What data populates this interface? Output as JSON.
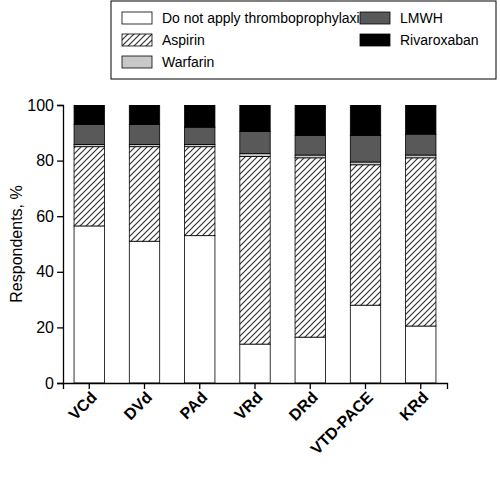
{
  "chart_data": {
    "type": "bar",
    "stacked": true,
    "legend": "top",
    "ylabel": "Respondents, %",
    "categories": [
      "VCd",
      "DVd",
      "PAd",
      "VRd",
      "DRd",
      "VTD-PACE",
      "KRd"
    ],
    "ylim": [
      0,
      100
    ],
    "yticks": [
      0,
      20,
      40,
      60,
      80,
      100
    ],
    "series": [
      {
        "name": "Do not apply thromboprophylaxis",
        "color": "#ffffff",
        "values": [
          56.5,
          51,
          53,
          14,
          16.5,
          28,
          20.5
        ]
      },
      {
        "name": "Aspirin",
        "color": "#333333",
        "line_style": "hatch",
        "values": [
          28.5,
          34,
          32,
          67.5,
          64.5,
          50.5,
          60.5
        ]
      },
      {
        "name": "Warfarin",
        "color": "#c8c8c8",
        "values": [
          0.8,
          0.8,
          0.8,
          1,
          1,
          1,
          1
        ]
      },
      {
        "name": "LMWH",
        "color": "#595959",
        "values": [
          7.2,
          7.2,
          6.2,
          8,
          7,
          9.5,
          7.5
        ]
      },
      {
        "name": "Rivaroxaban",
        "color": "#000000",
        "values": [
          7,
          7,
          8,
          9.5,
          11,
          11,
          10.5
        ]
      }
    ]
  }
}
